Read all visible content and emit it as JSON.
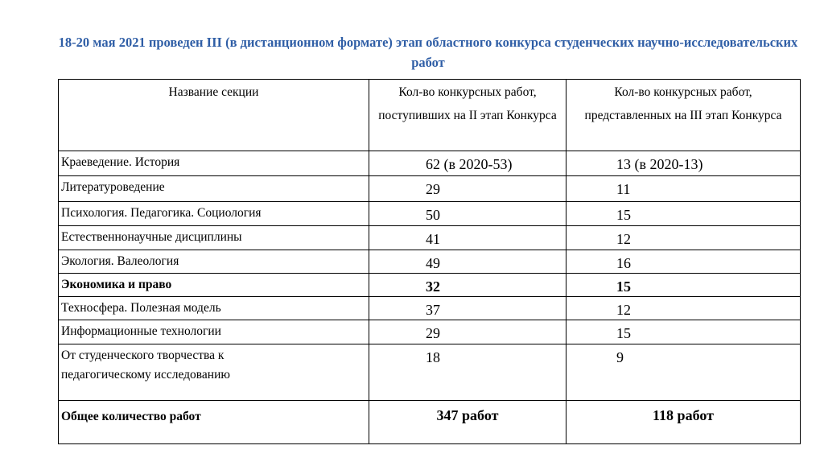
{
  "title": "18-20 мая 2021 проведен III (в дистанционном формате) этап областного конкурса студенческих научно-исследовательских работ",
  "table": {
    "header": [
      "Название секции",
      "Кол-во конкурсных работ, поступивших на II этап Конкурса",
      "Кол-во конкурсных работ, представленных на III этап Конкурса"
    ],
    "rows": [
      [
        "Краеведение. История",
        "62 (в 2020-53)",
        "13 (в 2020-13)"
      ],
      [
        "Литературоведение",
        "29",
        "11"
      ],
      [
        "Психология. Педагогика. Социология",
        "50",
        "15"
      ],
      [
        "Естественнонаучные дисциплины",
        "41",
        "12"
      ],
      [
        "Экология. Валеология",
        "49",
        "16"
      ],
      [
        "Экономика и право",
        "32",
        "15"
      ],
      [
        "Техносфера. Полезная модель",
        "37",
        "12"
      ],
      [
        "Информационные технологии",
        "29",
        "15"
      ],
      [
        "От студенческого творчества к педагогическому исследованию",
        "18",
        "9"
      ]
    ],
    "total": [
      "Общее количество работ",
      "347 работ",
      "118 работ"
    ]
  }
}
